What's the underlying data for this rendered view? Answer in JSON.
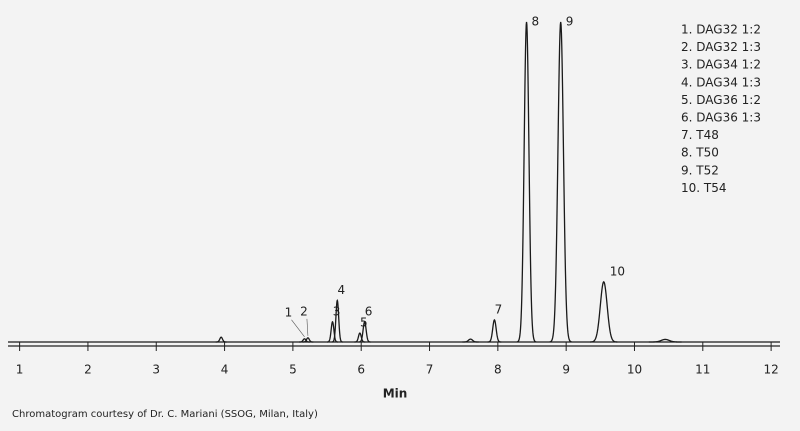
{
  "chart_data": {
    "type": "chromatogram",
    "x_label": "Min",
    "footnote": "Chromatogram courtesy of Dr. C. Mariani (SSOG, Milan, Italy)",
    "color": "#1a1a1a",
    "xlim": [
      0.83,
      12.13
    ],
    "xticks": [
      1,
      2,
      3,
      4,
      5,
      6,
      7,
      8,
      9,
      10,
      11,
      12
    ],
    "ylim": [
      0,
      100
    ],
    "peak_labels": [
      "1",
      "2",
      "3",
      "4",
      "5",
      "6",
      "7",
      "8",
      "9",
      "10"
    ],
    "x": [
      5.17,
      5.22,
      5.58,
      5.65,
      5.98,
      6.05,
      7.95,
      8.42,
      8.92,
      9.55
    ],
    "values": [
      1,
      1.3,
      6.3,
      13,
      2.8,
      6.3,
      6.9,
      100,
      100,
      18.8
    ],
    "widths": [
      0.02,
      0.02,
      0.02,
      0.02,
      0.02,
      0.022,
      0.025,
      0.035,
      0.04,
      0.05
    ],
    "minor_x": [
      3.95,
      7.6,
      10.45
    ],
    "minor_values": [
      1.5,
      0.9,
      0.8
    ],
    "minor_widths": [
      0.02,
      0.03,
      0.06
    ],
    "legend": [
      "1. DAG32 1:2",
      "2. DAG32 1:3",
      "3. DAG34 1:2",
      "4. DAG34 1:3",
      "5. DAG36 1:2",
      "6. DAG36 1:3",
      "7. T48",
      "8. T50",
      "9. T52",
      "10. T54"
    ]
  }
}
